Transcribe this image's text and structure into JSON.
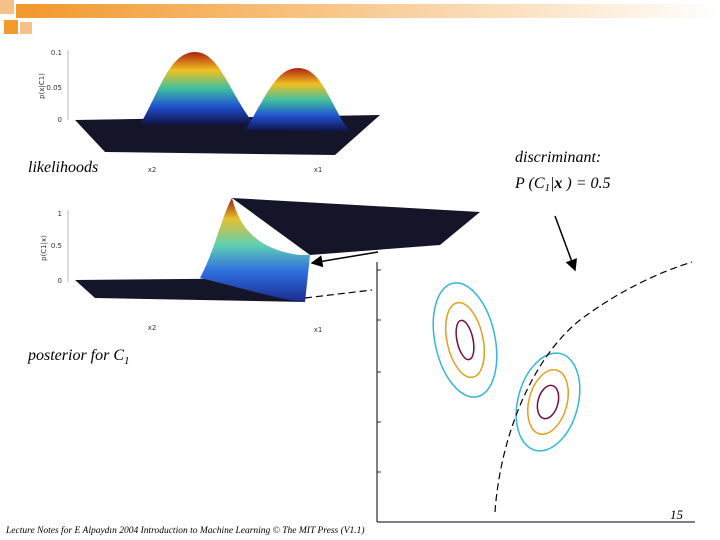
{
  "slide": {
    "plot1": {
      "ylabel": "p(x|C1)",
      "yticks": [
        "0.1",
        "0.05",
        "0"
      ],
      "xlabel_left": "x2",
      "xlabel_right": "x1"
    },
    "likelihoods": "likelihoods",
    "discriminant": {
      "title": "discriminant:",
      "formula": [
        "P (C",
        "1",
        "|",
        "x",
        " ) = 0.5"
      ]
    },
    "plot2": {
      "ylabel": "p(C1|x)",
      "yticks": [
        "1",
        "0.5",
        "0"
      ],
      "xlabel_left": "x2",
      "xlabel_right": "x1"
    },
    "posterior": [
      "posterior for C",
      "1"
    ],
    "page_number": "15",
    "footer": "Lecture Notes for E Alpaydın 2004 Introduction to Machine Learning © The MIT Press (V1.1)"
  }
}
